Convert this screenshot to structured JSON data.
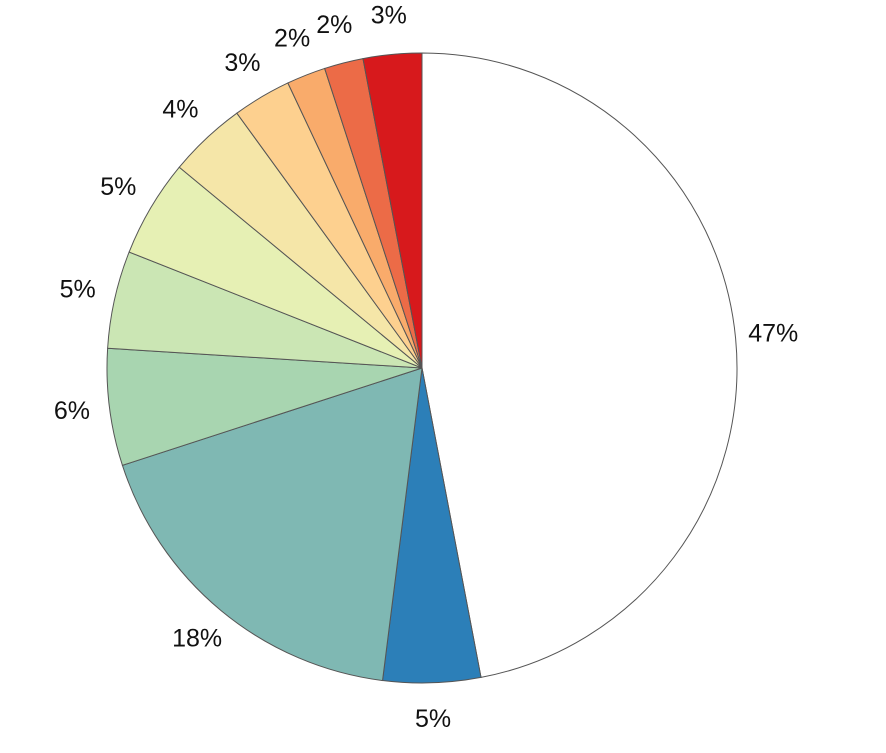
{
  "chart_data": {
    "type": "pie",
    "values": [
      47,
      5,
      18,
      6,
      5,
      5,
      4,
      3,
      2,
      2,
      3
    ],
    "value_labels": [
      "47%",
      "5%",
      "18%",
      "6%",
      "5%",
      "5%",
      "4%",
      "3%",
      "2%",
      "2%",
      "3%"
    ],
    "colors": [
      "#ffffff",
      "#2c7fb8",
      "#7fb8b3",
      "#a8d5b0",
      "#cbe6b4",
      "#e6f0b4",
      "#f5e6a8",
      "#fdd08f",
      "#f9ab6b",
      "#ec6b47",
      "#d7191c"
    ],
    "start": "top",
    "direction": "clockwise"
  }
}
